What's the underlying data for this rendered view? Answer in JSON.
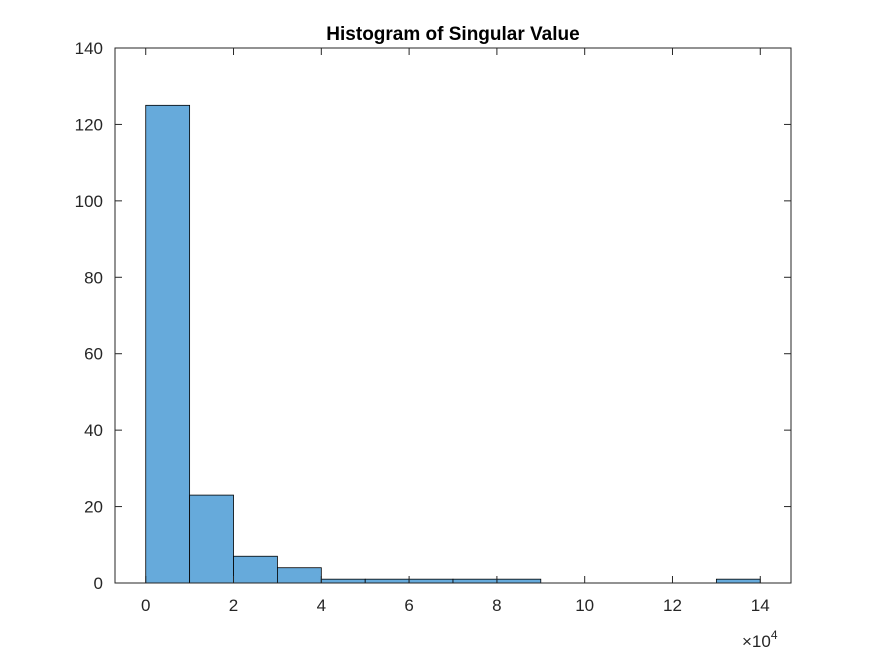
{
  "chart_data": {
    "type": "bar",
    "subtype": "histogram",
    "title": "Histogram of Singular Value",
    "xlabel": "",
    "ylabel": "",
    "x_multiplier_label": "×10",
    "x_multiplier_exponent": "4",
    "bin_edges": [
      0,
      1,
      2,
      3,
      4,
      5,
      6,
      7,
      8,
      9,
      10,
      11,
      12,
      13,
      14
    ],
    "values": [
      125,
      23,
      7,
      4,
      1,
      1,
      1,
      1,
      1,
      0,
      0,
      0,
      0,
      1
    ],
    "xlim": [
      -0.7,
      14.7
    ],
    "ylim": [
      0,
      140
    ],
    "xticks": [
      0,
      2,
      4,
      6,
      8,
      10,
      12,
      14
    ],
    "xtick_labels": [
      "0",
      "2",
      "4",
      "6",
      "8",
      "10",
      "12",
      "14"
    ],
    "yticks": [
      0,
      20,
      40,
      60,
      80,
      100,
      120,
      140
    ],
    "ytick_labels": [
      "0",
      "20",
      "40",
      "60",
      "80",
      "100",
      "120",
      "140"
    ],
    "bar_color": "#66AADB",
    "edge_color": "#000000",
    "grid": false,
    "legend": "none"
  }
}
